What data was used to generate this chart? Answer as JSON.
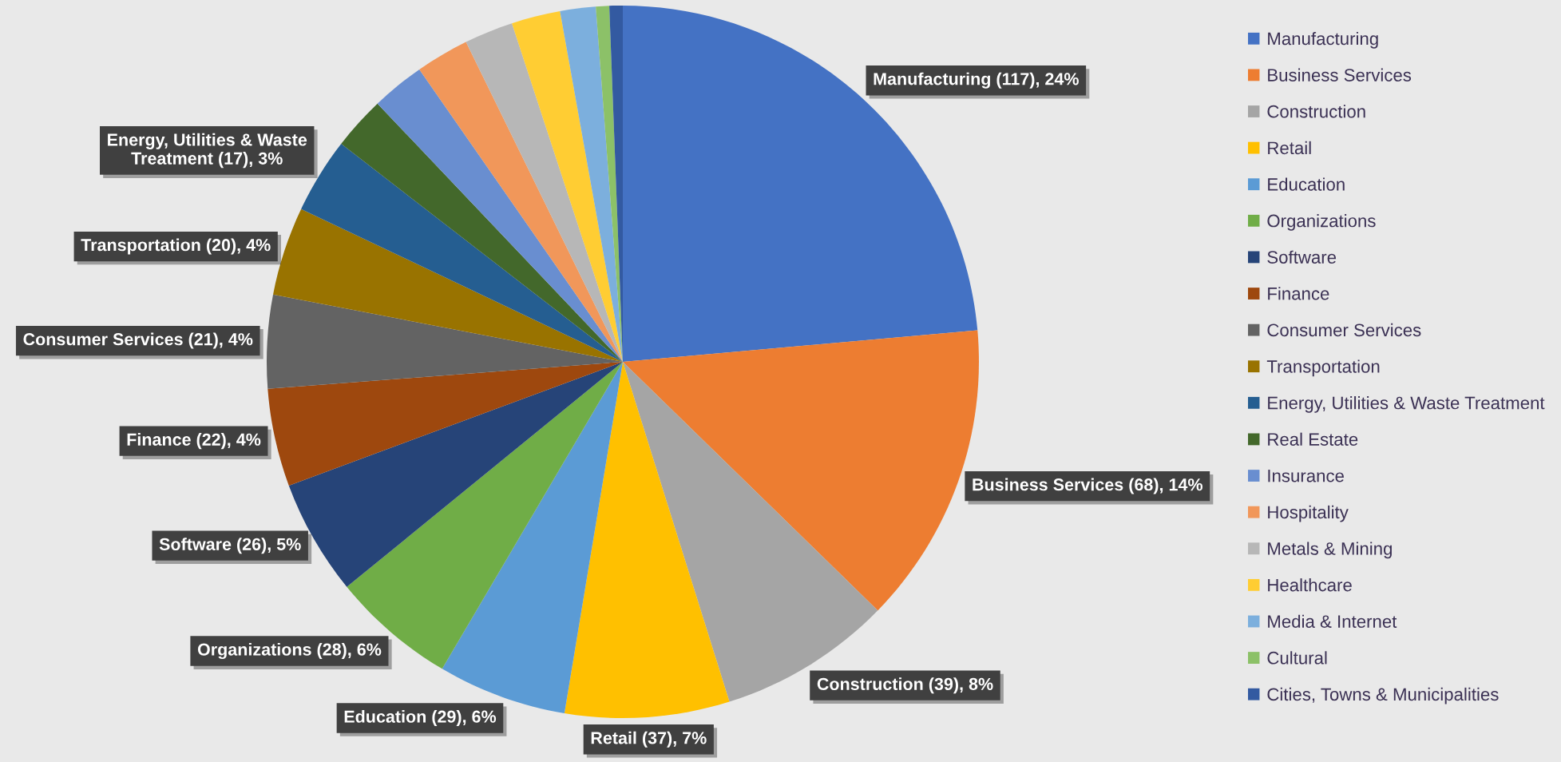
{
  "chart_data": {
    "type": "pie",
    "categories": [
      "Manufacturing",
      "Business Services",
      "Construction",
      "Retail",
      "Education",
      "Organizations",
      "Software",
      "Finance",
      "Consumer Services",
      "Transportation",
      "Energy, Utilities & Waste Treatment",
      "Real Estate",
      "Insurance",
      "Hospitality",
      "Metals & Mining",
      "Healthcare",
      "Media & Internet",
      "Cultural",
      "Cities, Towns & Municipalities"
    ],
    "values": [
      117,
      68,
      39,
      37,
      29,
      28,
      26,
      22,
      21,
      20,
      17,
      12,
      12,
      12,
      11,
      11,
      8,
      3,
      3
    ],
    "colors": [
      "#4472c4",
      "#ed7d31",
      "#a5a5a5",
      "#ffc000",
      "#5b9bd5",
      "#70ad47",
      "#264478",
      "#9e480e",
      "#636363",
      "#997300",
      "#255e91",
      "#43682b",
      "#698ed0",
      "#f1975a",
      "#b7b7b7",
      "#ffcd33",
      "#7cafdd",
      "#8cc168",
      "#335aa1"
    ],
    "value_labels": [
      "Manufacturing (117), 24%",
      "Business Services (68), 14%",
      "Construction (39), 8%",
      "Retail (37), 7%",
      "Education (29), 6%",
      "Organizations (28), 6%",
      "Software (26), 5%",
      "Finance (22), 4%",
      "Consumer Services (21), 4%",
      "Transportation (20), 4%",
      "Energy, Utilities & Waste Treatment (17), 3%",
      null,
      null,
      null,
      null,
      null,
      null,
      null,
      null
    ],
    "legend": "right"
  }
}
